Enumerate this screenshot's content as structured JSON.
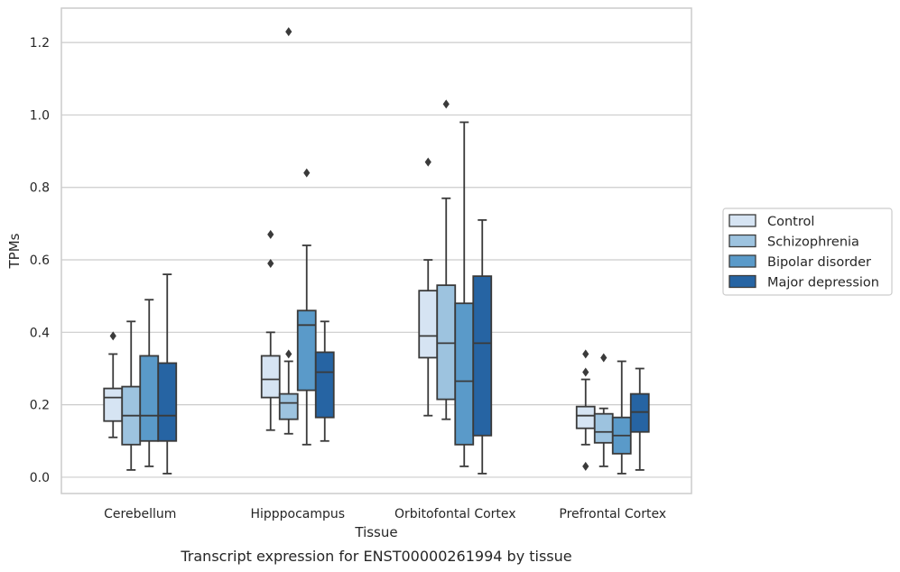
{
  "chart_data": {
    "type": "box",
    "caption": "Transcript expression for ENST00000261994 by tissue",
    "xlabel": "Tissue",
    "ylabel": "TPMs",
    "ylim": [
      -0.045,
      1.295
    ],
    "yticks": [
      "0.0",
      "0.2",
      "0.4",
      "0.6",
      "0.8",
      "1.0",
      "1.2"
    ],
    "ytick_values": [
      0.0,
      0.2,
      0.4,
      0.6,
      0.8,
      1.0,
      1.2
    ],
    "grid": "horizontal",
    "legend_placement": "right",
    "categories": [
      "Cerebellum",
      "Hipppocampus",
      "Orbitofontal Cortex",
      "Prefrontal Cortex"
    ],
    "series": [
      {
        "name": "Control",
        "color": "#d6e4f3",
        "boxes": [
          {
            "whislo": 0.11,
            "q1": 0.155,
            "med": 0.22,
            "q3": 0.245,
            "whishi": 0.34,
            "fliers": [
              0.39
            ]
          },
          {
            "whislo": 0.13,
            "q1": 0.22,
            "med": 0.27,
            "q3": 0.335,
            "whishi": 0.4,
            "fliers": [
              0.59,
              0.67
            ]
          },
          {
            "whislo": 0.17,
            "q1": 0.33,
            "med": 0.39,
            "q3": 0.515,
            "whishi": 0.6,
            "fliers": [
              0.87
            ]
          },
          {
            "whislo": 0.09,
            "q1": 0.135,
            "med": 0.17,
            "q3": 0.195,
            "whishi": 0.27,
            "fliers": [
              0.03,
              0.29,
              0.34
            ]
          }
        ]
      },
      {
        "name": "Schizophrenia",
        "color": "#9dc3df",
        "boxes": [
          {
            "whislo": 0.02,
            "q1": 0.09,
            "med": 0.17,
            "q3": 0.25,
            "whishi": 0.43,
            "fliers": []
          },
          {
            "whislo": 0.12,
            "q1": 0.16,
            "med": 0.205,
            "q3": 0.23,
            "whishi": 0.32,
            "fliers": [
              0.34,
              1.23
            ]
          },
          {
            "whislo": 0.16,
            "q1": 0.215,
            "med": 0.37,
            "q3": 0.53,
            "whishi": 0.77,
            "fliers": [
              1.03
            ]
          },
          {
            "whislo": 0.03,
            "q1": 0.095,
            "med": 0.125,
            "q3": 0.175,
            "whishi": 0.19,
            "fliers": [
              0.33
            ]
          }
        ]
      },
      {
        "name": "Bipolar disorder",
        "color": "#5a9ac9",
        "boxes": [
          {
            "whislo": 0.03,
            "q1": 0.1,
            "med": 0.17,
            "q3": 0.335,
            "whishi": 0.49,
            "fliers": []
          },
          {
            "whislo": 0.09,
            "q1": 0.24,
            "med": 0.42,
            "q3": 0.46,
            "whishi": 0.64,
            "fliers": [
              0.84
            ]
          },
          {
            "whislo": 0.03,
            "q1": 0.09,
            "med": 0.265,
            "q3": 0.48,
            "whishi": 0.98,
            "fliers": []
          },
          {
            "whislo": 0.01,
            "q1": 0.065,
            "med": 0.115,
            "q3": 0.165,
            "whishi": 0.32,
            "fliers": []
          }
        ]
      },
      {
        "name": "Major depression",
        "color": "#2664a3",
        "boxes": [
          {
            "whislo": 0.01,
            "q1": 0.1,
            "med": 0.17,
            "q3": 0.315,
            "whishi": 0.56,
            "fliers": []
          },
          {
            "whislo": 0.1,
            "q1": 0.165,
            "med": 0.29,
            "q3": 0.345,
            "whishi": 0.43,
            "fliers": []
          },
          {
            "whislo": 0.01,
            "q1": 0.115,
            "med": 0.37,
            "q3": 0.555,
            "whishi": 0.71,
            "fliers": []
          },
          {
            "whislo": 0.02,
            "q1": 0.125,
            "med": 0.18,
            "q3": 0.23,
            "whishi": 0.3,
            "fliers": []
          }
        ]
      }
    ]
  }
}
